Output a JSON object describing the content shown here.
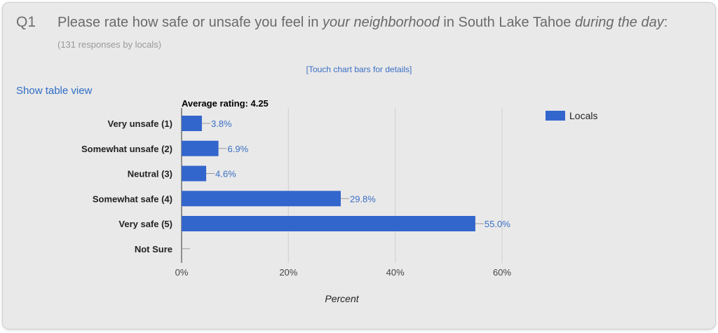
{
  "question": {
    "number": "Q1",
    "text_part1": "Please rate how safe or unsafe you feel in ",
    "text_em1": "your neighborhood",
    "text_part2": " in South Lake Tahoe ",
    "text_em2": "during the day",
    "text_part3": ":",
    "responses": "(131 responses by locals)"
  },
  "touch_hint": "[Touch chart bars for details]",
  "table_link": "Show table view",
  "chart_data": {
    "type": "bar",
    "orientation": "horizontal",
    "title": "Average rating: 4.25",
    "categories": [
      "Very unsafe (1)",
      "Somewhat unsafe (2)",
      "Neutral (3)",
      "Somewhat safe (4)",
      "Very safe (5)",
      "Not Sure"
    ],
    "series": [
      {
        "name": "Locals",
        "values": [
          3.8,
          6.9,
          4.6,
          29.8,
          55.0,
          0
        ],
        "color": "#3366cc"
      }
    ],
    "value_labels": [
      "3.8%",
      "6.9%",
      "4.6%",
      "29.8%",
      "55.0%",
      ""
    ],
    "xlabel": "Percent",
    "ylabel": "",
    "xlim": [
      0,
      60
    ],
    "xticks": [
      0,
      20,
      40,
      60
    ],
    "xtick_labels": [
      "0%",
      "20%",
      "40%",
      "60%"
    ],
    "grid": true,
    "legend": "top-right"
  }
}
